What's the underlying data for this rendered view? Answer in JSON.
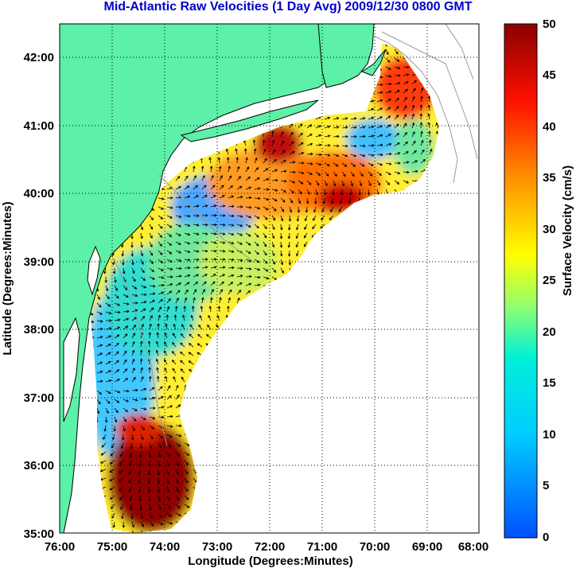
{
  "title": "Mid-Atlantic Raw Velocities (1 Day Avg) 2009/12/30 0800 GMT",
  "xlabel": "Longitude (Degrees:Minutes)",
  "ylabel": "Latitude (Degrees:Minutes)",
  "x_ticks": [
    "76:00",
    "75:00",
    "74:00",
    "73:00",
    "72:00",
    "71:00",
    "70:00",
    "69:00",
    "68:00"
  ],
  "y_ticks": [
    "42:00",
    "41:00",
    "40:00",
    "39:00",
    "38:00",
    "37:00",
    "36:00",
    "35:00"
  ],
  "colorbar": {
    "label": "Surface Velocity (cm/s)",
    "ticks": [
      "0",
      "5",
      "10",
      "15",
      "20",
      "25",
      "30",
      "35",
      "40",
      "45",
      "50"
    ],
    "min": 0,
    "max": 50
  },
  "colors": {
    "land": "#5cf0a8",
    "water": "#ffffff",
    "title": "#0000cc",
    "grid": "#000000",
    "bathymetry": "#9a9a9a"
  },
  "map_extent": {
    "lon_min": -76,
    "lon_max": -68,
    "lat_min": 35,
    "lat_max": 42.5
  }
}
